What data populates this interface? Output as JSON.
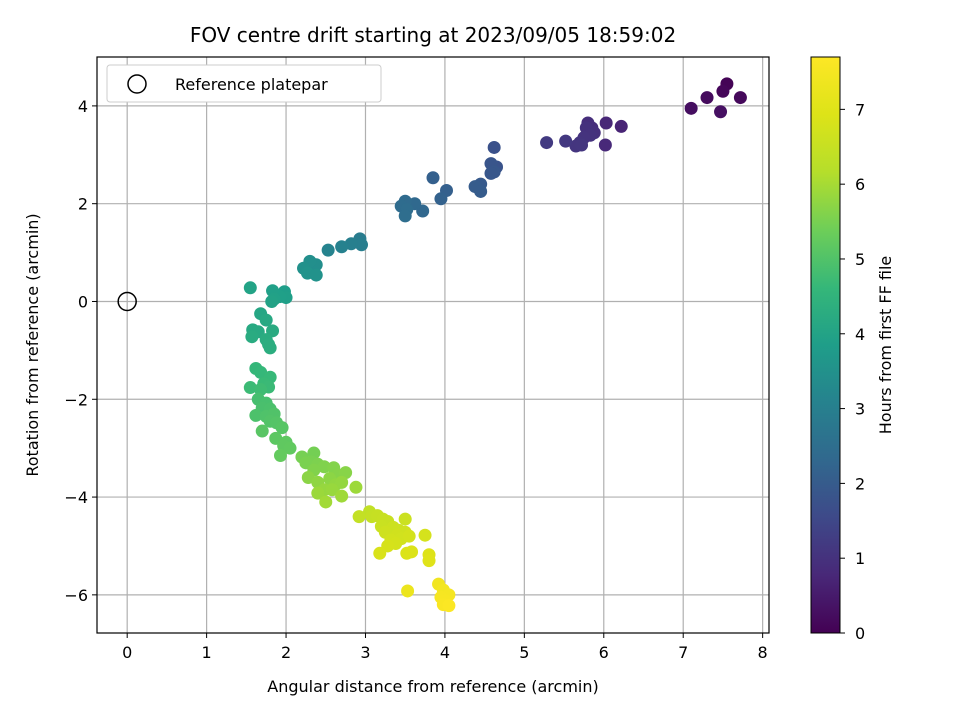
{
  "chart_data": {
    "type": "scatter",
    "title": "FOV centre drift starting at 2023/09/05 18:59:02",
    "xlabel": "Angular distance from reference (arcmin)",
    "ylabel": "Rotation from reference (arcmin)",
    "xlim": [
      -0.38,
      8.08
    ],
    "ylim": [
      -6.78,
      5.0
    ],
    "xticks": [
      "0",
      "1",
      "2",
      "3",
      "4",
      "5",
      "6",
      "7",
      "8"
    ],
    "yticks": [
      "−6",
      "−4",
      "−2",
      "0",
      "2",
      "4"
    ],
    "grid": true,
    "legend": {
      "placement": "top-left",
      "label": "Reference platepar"
    },
    "colorbar": {
      "label": "Hours from first FF file",
      "range": [
        0,
        7.7
      ],
      "ticks": [
        "0",
        "1",
        "2",
        "3",
        "4",
        "5",
        "6",
        "7"
      ],
      "colormap": "viridis"
    },
    "reference_point": {
      "x": 0,
      "y": 0
    },
    "points": [
      {
        "x": 7.55,
        "y": 4.45,
        "c": 0.05
      },
      {
        "x": 7.5,
        "y": 4.3,
        "c": 0.1
      },
      {
        "x": 7.72,
        "y": 4.17,
        "c": 0.15
      },
      {
        "x": 7.3,
        "y": 4.17,
        "c": 0.2
      },
      {
        "x": 7.1,
        "y": 3.95,
        "c": 0.25
      },
      {
        "x": 7.47,
        "y": 3.88,
        "c": 0.3
      },
      {
        "x": 6.22,
        "y": 3.58,
        "c": 0.7
      },
      {
        "x": 6.03,
        "y": 3.65,
        "c": 0.75
      },
      {
        "x": 6.02,
        "y": 3.2,
        "c": 0.8
      },
      {
        "x": 5.85,
        "y": 3.55,
        "c": 0.9
      },
      {
        "x": 5.8,
        "y": 3.65,
        "c": 0.92
      },
      {
        "x": 5.88,
        "y": 3.45,
        "c": 0.95
      },
      {
        "x": 5.78,
        "y": 3.55,
        "c": 0.98
      },
      {
        "x": 5.83,
        "y": 3.4,
        "c": 1.0
      },
      {
        "x": 5.75,
        "y": 3.35,
        "c": 1.02
      },
      {
        "x": 5.7,
        "y": 3.25,
        "c": 1.05
      },
      {
        "x": 5.65,
        "y": 3.18,
        "c": 1.08
      },
      {
        "x": 5.72,
        "y": 3.2,
        "c": 1.1
      },
      {
        "x": 5.52,
        "y": 3.28,
        "c": 1.15
      },
      {
        "x": 5.28,
        "y": 3.25,
        "c": 1.2
      },
      {
        "x": 4.62,
        "y": 3.15,
        "c": 1.75
      },
      {
        "x": 4.65,
        "y": 2.75,
        "c": 1.8
      },
      {
        "x": 4.58,
        "y": 2.82,
        "c": 1.85
      },
      {
        "x": 4.62,
        "y": 2.65,
        "c": 1.88
      },
      {
        "x": 4.58,
        "y": 2.62,
        "c": 1.9
      },
      {
        "x": 4.45,
        "y": 2.4,
        "c": 1.95
      },
      {
        "x": 4.38,
        "y": 2.35,
        "c": 2.0
      },
      {
        "x": 4.45,
        "y": 2.25,
        "c": 2.02
      },
      {
        "x": 4.02,
        "y": 2.27,
        "c": 2.1
      },
      {
        "x": 3.95,
        "y": 2.1,
        "c": 2.15
      },
      {
        "x": 3.85,
        "y": 2.53,
        "c": 2.12
      },
      {
        "x": 3.72,
        "y": 1.85,
        "c": 2.3
      },
      {
        "x": 3.62,
        "y": 2.0,
        "c": 2.35
      },
      {
        "x": 3.5,
        "y": 2.05,
        "c": 2.4
      },
      {
        "x": 3.45,
        "y": 1.95,
        "c": 2.42
      },
      {
        "x": 3.52,
        "y": 1.88,
        "c": 2.45
      },
      {
        "x": 3.5,
        "y": 1.75,
        "c": 2.48
      },
      {
        "x": 2.93,
        "y": 1.28,
        "c": 2.9
      },
      {
        "x": 2.95,
        "y": 1.16,
        "c": 2.95
      },
      {
        "x": 2.82,
        "y": 1.18,
        "c": 3.0
      },
      {
        "x": 2.7,
        "y": 1.12,
        "c": 3.05
      },
      {
        "x": 2.53,
        "y": 1.05,
        "c": 3.1
      },
      {
        "x": 2.38,
        "y": 0.75,
        "c": 3.4
      },
      {
        "x": 2.3,
        "y": 0.82,
        "c": 3.45
      },
      {
        "x": 2.22,
        "y": 0.68,
        "c": 3.5
      },
      {
        "x": 2.27,
        "y": 0.58,
        "c": 3.55
      },
      {
        "x": 2.38,
        "y": 0.54,
        "c": 3.52
      },
      {
        "x": 1.98,
        "y": 0.2,
        "c": 3.85
      },
      {
        "x": 2.0,
        "y": 0.08,
        "c": 3.88
      },
      {
        "x": 1.92,
        "y": 0.1,
        "c": 3.9
      },
      {
        "x": 1.83,
        "y": 0.22,
        "c": 3.92
      },
      {
        "x": 1.85,
        "y": 0.05,
        "c": 3.95
      },
      {
        "x": 1.82,
        "y": 0.0,
        "c": 3.98
      },
      {
        "x": 1.55,
        "y": 0.28,
        "c": 4.0
      },
      {
        "x": 1.68,
        "y": -0.25,
        "c": 4.1
      },
      {
        "x": 1.75,
        "y": -0.38,
        "c": 4.15
      },
      {
        "x": 1.58,
        "y": -0.58,
        "c": 4.18
      },
      {
        "x": 1.65,
        "y": -0.62,
        "c": 4.2
      },
      {
        "x": 1.83,
        "y": -0.6,
        "c": 4.22
      },
      {
        "x": 1.57,
        "y": -0.72,
        "c": 4.25
      },
      {
        "x": 1.75,
        "y": -0.78,
        "c": 4.28
      },
      {
        "x": 1.78,
        "y": -0.88,
        "c": 4.3
      },
      {
        "x": 1.8,
        "y": -0.95,
        "c": 4.32
      },
      {
        "x": 1.62,
        "y": -1.37,
        "c": 4.6
      },
      {
        "x": 1.68,
        "y": -1.45,
        "c": 4.62
      },
      {
        "x": 1.8,
        "y": -1.55,
        "c": 4.65
      },
      {
        "x": 1.72,
        "y": -1.68,
        "c": 4.68
      },
      {
        "x": 1.78,
        "y": -1.75,
        "c": 4.7
      },
      {
        "x": 1.55,
        "y": -1.76,
        "c": 4.72
      },
      {
        "x": 1.68,
        "y": -1.8,
        "c": 4.75
      },
      {
        "x": 1.65,
        "y": -2.0,
        "c": 4.85
      },
      {
        "x": 1.75,
        "y": -2.08,
        "c": 4.88
      },
      {
        "x": 1.7,
        "y": -2.18,
        "c": 4.9
      },
      {
        "x": 1.8,
        "y": -2.2,
        "c": 4.92
      },
      {
        "x": 1.62,
        "y": -2.33,
        "c": 4.95
      },
      {
        "x": 1.75,
        "y": -2.35,
        "c": 4.98
      },
      {
        "x": 1.85,
        "y": -2.3,
        "c": 5.0
      },
      {
        "x": 1.8,
        "y": -2.45,
        "c": 5.02
      },
      {
        "x": 1.88,
        "y": -2.48,
        "c": 5.05
      },
      {
        "x": 1.95,
        "y": -2.58,
        "c": 5.08
      },
      {
        "x": 1.7,
        "y": -2.65,
        "c": 5.1
      },
      {
        "x": 1.87,
        "y": -2.8,
        "c": 5.15
      },
      {
        "x": 2.0,
        "y": -2.88,
        "c": 5.18
      },
      {
        "x": 1.97,
        "y": -2.95,
        "c": 5.2
      },
      {
        "x": 2.05,
        "y": -3.0,
        "c": 5.22
      },
      {
        "x": 1.93,
        "y": -3.15,
        "c": 5.25
      },
      {
        "x": 2.35,
        "y": -3.1,
        "c": 5.45
      },
      {
        "x": 2.2,
        "y": -3.18,
        "c": 5.48
      },
      {
        "x": 2.32,
        "y": -3.28,
        "c": 5.5
      },
      {
        "x": 2.25,
        "y": -3.3,
        "c": 5.52
      },
      {
        "x": 2.4,
        "y": -3.33,
        "c": 5.55
      },
      {
        "x": 2.48,
        "y": -3.38,
        "c": 5.58
      },
      {
        "x": 2.35,
        "y": -3.45,
        "c": 5.6
      },
      {
        "x": 2.6,
        "y": -3.4,
        "c": 5.62
      },
      {
        "x": 2.65,
        "y": -3.55,
        "c": 5.65
      },
      {
        "x": 2.75,
        "y": -3.5,
        "c": 5.67
      },
      {
        "x": 2.28,
        "y": -3.6,
        "c": 5.7
      },
      {
        "x": 2.55,
        "y": -3.62,
        "c": 5.72
      },
      {
        "x": 2.4,
        "y": -3.7,
        "c": 5.75
      },
      {
        "x": 2.62,
        "y": -3.75,
        "c": 5.78
      },
      {
        "x": 2.7,
        "y": -3.7,
        "c": 5.8
      },
      {
        "x": 2.48,
        "y": -3.85,
        "c": 5.82
      },
      {
        "x": 2.58,
        "y": -3.85,
        "c": 5.85
      },
      {
        "x": 2.4,
        "y": -3.92,
        "c": 5.88
      },
      {
        "x": 2.88,
        "y": -3.8,
        "c": 5.9
      },
      {
        "x": 2.7,
        "y": -3.98,
        "c": 5.92
      },
      {
        "x": 2.5,
        "y": -4.1,
        "c": 5.95
      },
      {
        "x": 3.05,
        "y": -4.3,
        "c": 6.4
      },
      {
        "x": 2.92,
        "y": -4.4,
        "c": 6.42
      },
      {
        "x": 3.08,
        "y": -4.4,
        "c": 6.45
      },
      {
        "x": 3.15,
        "y": -4.38,
        "c": 6.48
      },
      {
        "x": 3.22,
        "y": -4.45,
        "c": 6.5
      },
      {
        "x": 3.28,
        "y": -4.5,
        "c": 6.52
      },
      {
        "x": 3.2,
        "y": -4.6,
        "c": 6.55
      },
      {
        "x": 3.5,
        "y": -4.45,
        "c": 6.58
      },
      {
        "x": 3.35,
        "y": -4.62,
        "c": 6.6
      },
      {
        "x": 3.42,
        "y": -4.68,
        "c": 6.62
      },
      {
        "x": 3.25,
        "y": -4.72,
        "c": 6.64
      },
      {
        "x": 3.5,
        "y": -4.72,
        "c": 6.66
      },
      {
        "x": 3.4,
        "y": -4.78,
        "c": 6.68
      },
      {
        "x": 3.45,
        "y": -4.85,
        "c": 6.7
      },
      {
        "x": 3.32,
        "y": -4.88,
        "c": 6.72
      },
      {
        "x": 3.55,
        "y": -4.8,
        "c": 6.74
      },
      {
        "x": 3.38,
        "y": -4.95,
        "c": 6.76
      },
      {
        "x": 3.75,
        "y": -4.78,
        "c": 6.78
      },
      {
        "x": 3.28,
        "y": -5.0,
        "c": 6.8
      },
      {
        "x": 3.18,
        "y": -5.15,
        "c": 6.85
      },
      {
        "x": 3.52,
        "y": -5.15,
        "c": 6.9
      },
      {
        "x": 3.58,
        "y": -5.12,
        "c": 6.92
      },
      {
        "x": 3.8,
        "y": -5.18,
        "c": 6.95
      },
      {
        "x": 3.8,
        "y": -5.3,
        "c": 7.0
      },
      {
        "x": 3.92,
        "y": -5.78,
        "c": 7.4
      },
      {
        "x": 3.98,
        "y": -5.9,
        "c": 7.45
      },
      {
        "x": 4.05,
        "y": -6.0,
        "c": 7.5
      },
      {
        "x": 3.95,
        "y": -6.05,
        "c": 7.52
      },
      {
        "x": 4.0,
        "y": -6.12,
        "c": 7.55
      },
      {
        "x": 3.98,
        "y": -6.2,
        "c": 7.6
      },
      {
        "x": 4.05,
        "y": -6.22,
        "c": 7.65
      },
      {
        "x": 3.53,
        "y": -5.92,
        "c": 7.3
      }
    ]
  }
}
